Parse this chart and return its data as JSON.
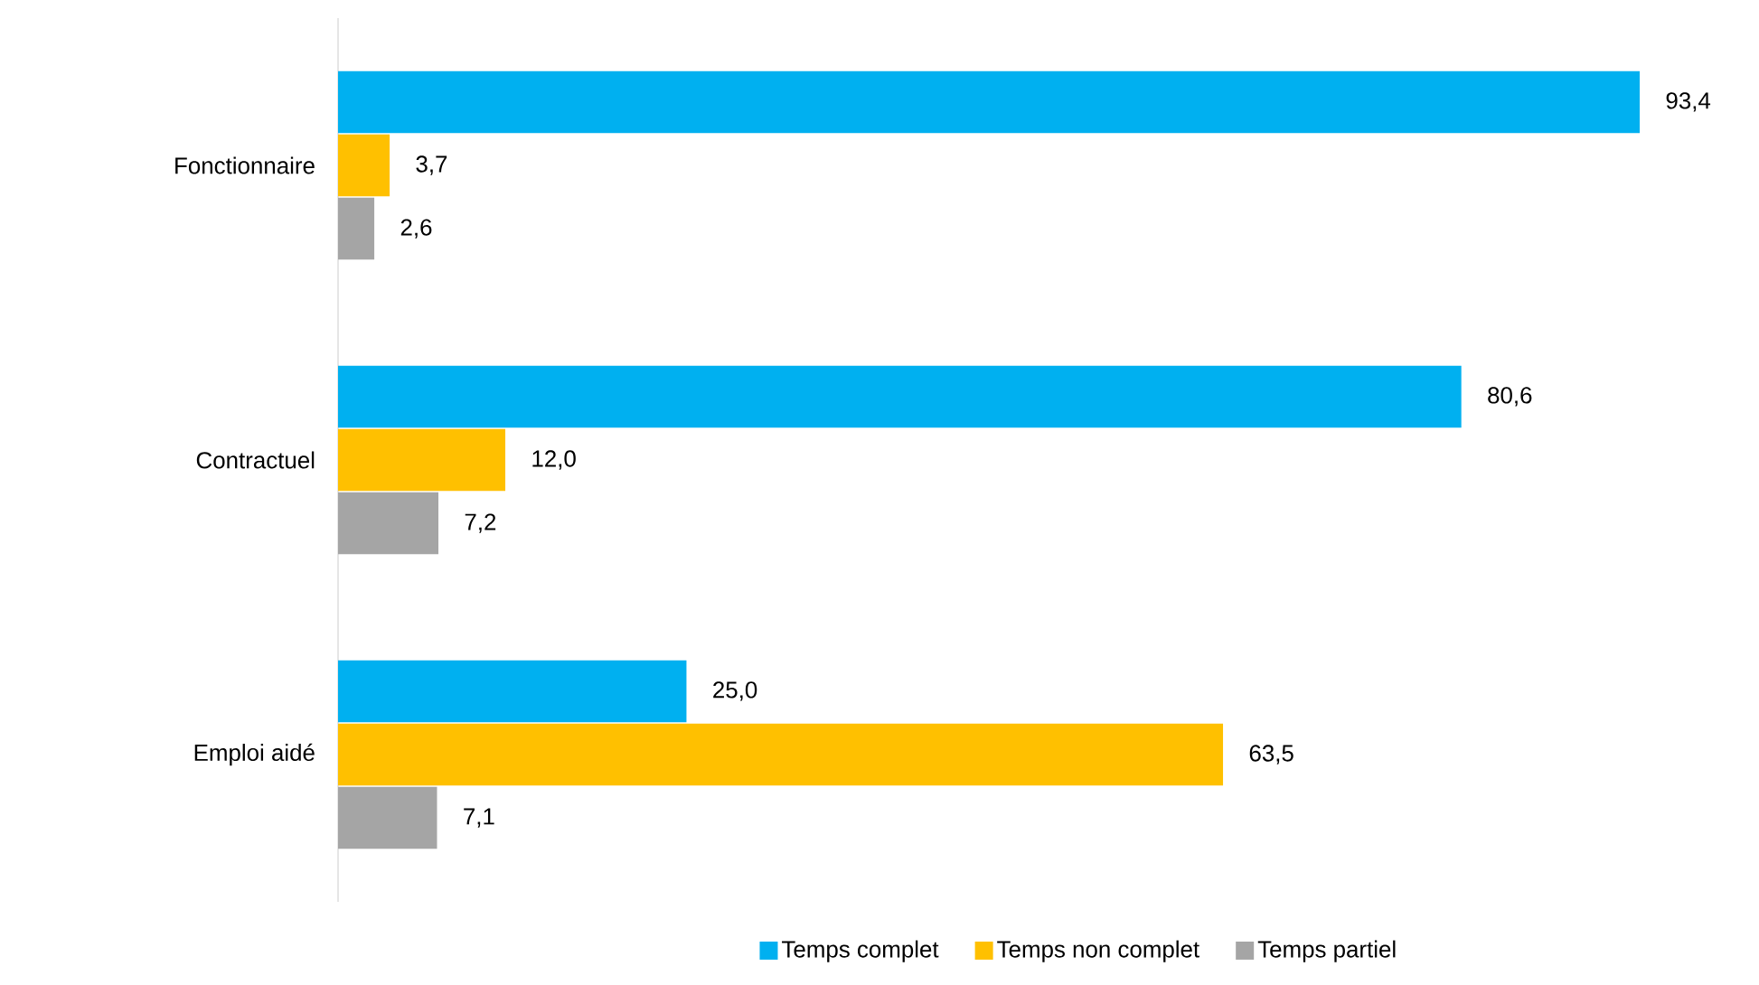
{
  "chart_data": {
    "type": "bar",
    "orientation": "horizontal",
    "categories": [
      "Fonctionnaire",
      "Contractuel",
      "Emploi aidé"
    ],
    "series": [
      {
        "name": "Temps complet",
        "color": "#00b0f0",
        "values": [
          93.4,
          80.6,
          25.0
        ],
        "value_labels": [
          "93,4",
          "80,6",
          "25,0"
        ]
      },
      {
        "name": "Temps non complet",
        "color": "#ffc000",
        "values": [
          3.7,
          12.0,
          63.5
        ],
        "value_labels": [
          "3,7",
          "12,0",
          "63,5"
        ]
      },
      {
        "name": "Temps partiel",
        "color": "#a5a5a5",
        "values": [
          2.6,
          7.2,
          7.1
        ],
        "value_labels": [
          "2,6",
          "7,2",
          "7,1"
        ]
      }
    ],
    "legend": "bottom"
  }
}
